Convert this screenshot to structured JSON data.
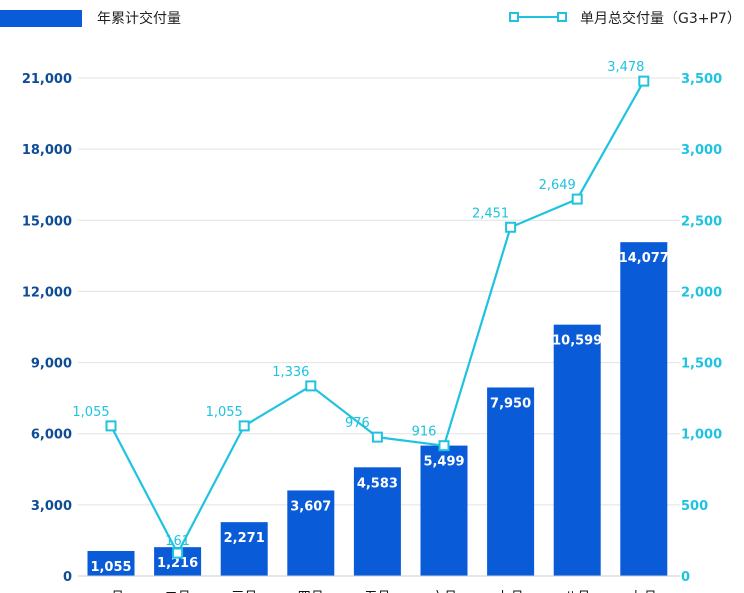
{
  "chart_data": {
    "type": "bar+line",
    "categories": [
      "一月",
      "二月",
      "三月",
      "四月",
      "五月",
      "六月",
      "七月",
      "八月",
      "九月"
    ],
    "series": [
      {
        "name": "年累计交付量",
        "type": "bar",
        "axis": "left",
        "color": "#0a5bd8",
        "values": [
          1055,
          1216,
          2271,
          3607,
          4583,
          5499,
          7950,
          10599,
          14077
        ],
        "labels": [
          "1,055",
          "1,216",
          "2,271",
          "3,607",
          "4,583",
          "5,499",
          "7,950",
          "10,599",
          "14,077"
        ]
      },
      {
        "name": "单月总交付量（G3+P7）",
        "type": "line",
        "axis": "right",
        "color": "#1fc3e0",
        "values": [
          1055,
          161,
          1055,
          1336,
          976,
          916,
          2451,
          2649,
          3478
        ],
        "labels": [
          "1,055",
          "161",
          "1,055",
          "1,336",
          "976",
          "916",
          "2,451",
          "2,649",
          "3,478"
        ]
      }
    ],
    "y_left": {
      "range": [
        0,
        21000
      ],
      "ticks": [
        0,
        3000,
        6000,
        9000,
        12000,
        15000,
        18000,
        21000
      ],
      "tick_labels": [
        "0",
        "3,000",
        "6,000",
        "9,000",
        "12,000",
        "15,000",
        "18,000",
        "21,000"
      ],
      "color": "#0f4c96"
    },
    "y_right": {
      "range": [
        0,
        3500
      ],
      "ticks": [
        0,
        500,
        1000,
        1500,
        2000,
        2500,
        3000,
        3500
      ],
      "tick_labels": [
        "0",
        "500",
        "1,000",
        "1,500",
        "2,000",
        "2,500",
        "3,000",
        "3,500"
      ],
      "color": "#1fc3e0"
    },
    "grid": true,
    "legend_position": "top"
  }
}
